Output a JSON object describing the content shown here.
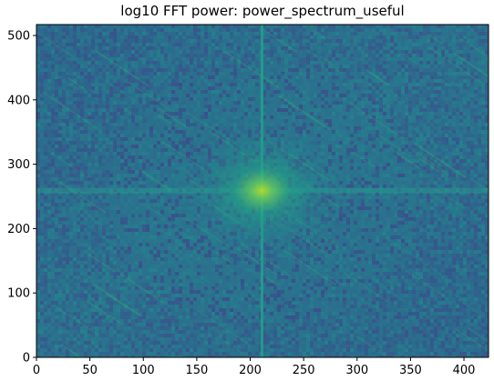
{
  "chart_data": {
    "type": "heatmap",
    "title": "log10 FFT power: power_spectrum_useful",
    "xlabel": "",
    "ylabel": "",
    "xlim": [
      0,
      423
    ],
    "ylim": [
      0,
      517
    ],
    "x_ticks": [
      0,
      50,
      100,
      150,
      200,
      250,
      300,
      350,
      400
    ],
    "y_ticks": [
      0,
      100,
      200,
      300,
      400,
      500
    ],
    "origin": "lower",
    "colormap": "viridis",
    "center": {
      "x": 211,
      "y": 259
    },
    "grid": false,
    "legend": "none",
    "colors": {
      "background_low": "#30568e",
      "background_high": "#277f8e",
      "center_peak": "#5ec962",
      "cross_line": "#25a18e"
    },
    "description_features": [
      "vertical bright line at x≈211",
      "horizontal bright band at y≈259",
      "diagonal streaks from upper-left to lower-right"
    ]
  }
}
